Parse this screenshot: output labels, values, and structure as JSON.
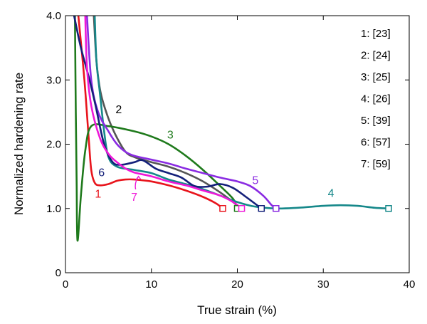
{
  "chart_data": {
    "type": "line",
    "xlabel": "True strain (%)",
    "ylabel": "Normalized hardening rate",
    "xlim": [
      0,
      40
    ],
    "ylim": [
      0,
      4.0
    ],
    "xticks": [
      "0",
      "10",
      "20",
      "30",
      "40"
    ],
    "yticks": [
      "0",
      "1.0",
      "2.0",
      "3.0",
      "4.0"
    ],
    "grid": false,
    "legend_position": "top-right",
    "legend": [
      "1: [23]",
      "2: [24]",
      "3: [25]",
      "4: [26]",
      "5: [39]",
      "6: [57]",
      "7: [59]"
    ],
    "series": [
      {
        "name": "1",
        "color": "#e8141c",
        "points": [
          [
            1.5,
            4.0
          ],
          [
            2.2,
            3.0
          ],
          [
            2.7,
            2.1
          ],
          [
            3.0,
            1.6
          ],
          [
            3.4,
            1.4
          ],
          [
            4.0,
            1.36
          ],
          [
            5.0,
            1.38
          ],
          [
            6.0,
            1.43
          ],
          [
            7.0,
            1.45
          ],
          [
            8.0,
            1.45
          ],
          [
            10.0,
            1.42
          ],
          [
            12.0,
            1.36
          ],
          [
            14.0,
            1.28
          ],
          [
            16.0,
            1.18
          ],
          [
            17.5,
            1.08
          ],
          [
            18.3,
            1.0
          ]
        ],
        "end_marker": [
          18.3,
          1.0
        ]
      },
      {
        "name": "2",
        "color": "#555555",
        "points": [
          [
            3.3,
            4.0
          ],
          [
            3.6,
            3.3
          ],
          [
            4.1,
            2.8
          ],
          [
            5.0,
            2.4
          ],
          [
            6.0,
            2.1
          ],
          [
            7.0,
            1.88
          ],
          [
            8.0,
            1.8
          ],
          [
            10.0,
            1.72
          ],
          [
            12.0,
            1.65
          ],
          [
            14.0,
            1.55
          ],
          [
            16.0,
            1.42
          ],
          [
            18.0,
            1.25
          ],
          [
            19.5,
            1.1
          ],
          [
            20.3,
            1.0
          ]
        ],
        "end_marker": [
          20.3,
          1.0
        ]
      },
      {
        "name": "3",
        "color": "#1f7a1c",
        "points": [
          [
            1.1,
            4.0
          ],
          [
            1.2,
            2.5
          ],
          [
            1.3,
            1.4
          ],
          [
            1.4,
            0.5
          ],
          [
            1.8,
            1.2
          ],
          [
            2.3,
            1.9
          ],
          [
            3.0,
            2.28
          ],
          [
            5.0,
            2.28
          ],
          [
            8.0,
            2.2
          ],
          [
            10.0,
            2.12
          ],
          [
            12.0,
            2.0
          ],
          [
            14.0,
            1.82
          ],
          [
            16.0,
            1.6
          ],
          [
            18.0,
            1.35
          ],
          [
            19.5,
            1.15
          ],
          [
            20.0,
            1.0
          ]
        ],
        "end_marker": [
          20.0,
          1.0
        ]
      },
      {
        "name": "4",
        "color": "#16888a",
        "points": [
          [
            3.4,
            4.0
          ],
          [
            3.6,
            3.3
          ],
          [
            4.0,
            2.8
          ],
          [
            4.5,
            2.2
          ],
          [
            5.0,
            1.8
          ],
          [
            6.0,
            1.65
          ],
          [
            8.0,
            1.6
          ],
          [
            10.0,
            1.55
          ],
          [
            12.0,
            1.45
          ],
          [
            14.0,
            1.38
          ],
          [
            16.0,
            1.3
          ],
          [
            18.0,
            1.2
          ],
          [
            20.0,
            1.1
          ],
          [
            22.0,
            1.03
          ],
          [
            24.5,
            1.0
          ],
          [
            27.0,
            1.01
          ],
          [
            30.0,
            1.04
          ],
          [
            32.0,
            1.05
          ],
          [
            34.0,
            1.04
          ],
          [
            36.0,
            1.01
          ],
          [
            37.6,
            1.0
          ]
        ],
        "end_marker": [
          37.6,
          1.0
        ]
      },
      {
        "name": "5",
        "color": "#8a2be2",
        "points": [
          [
            2.5,
            4.0
          ],
          [
            3.0,
            3.0
          ],
          [
            3.8,
            2.5
          ],
          [
            5.0,
            2.2
          ],
          [
            6.0,
            2.0
          ],
          [
            7.0,
            1.88
          ],
          [
            8.0,
            1.82
          ],
          [
            10.0,
            1.76
          ],
          [
            12.0,
            1.7
          ],
          [
            14.0,
            1.62
          ],
          [
            16.0,
            1.55
          ],
          [
            18.0,
            1.48
          ],
          [
            20.0,
            1.42
          ],
          [
            21.5,
            1.35
          ],
          [
            23.0,
            1.2
          ],
          [
            24.0,
            1.05
          ],
          [
            24.5,
            1.0
          ]
        ],
        "end_marker": [
          24.5,
          1.0
        ]
      },
      {
        "name": "6",
        "color": "#14207a",
        "points": [
          [
            1.0,
            4.0
          ],
          [
            1.8,
            3.5
          ],
          [
            2.8,
            3.0
          ],
          [
            3.5,
            2.6
          ],
          [
            4.5,
            2.0
          ],
          [
            5.5,
            1.72
          ],
          [
            6.5,
            1.68
          ],
          [
            8.0,
            1.72
          ],
          [
            9.0,
            1.75
          ],
          [
            10.5,
            1.62
          ],
          [
            12.0,
            1.55
          ],
          [
            13.5,
            1.48
          ],
          [
            15.0,
            1.35
          ],
          [
            16.5,
            1.34
          ],
          [
            18.0,
            1.38
          ],
          [
            19.5,
            1.32
          ],
          [
            21.0,
            1.18
          ],
          [
            22.0,
            1.08
          ],
          [
            22.8,
            1.0
          ]
        ],
        "end_marker": [
          22.8,
          1.0
        ]
      },
      {
        "name": "7",
        "color": "#ee18d8",
        "points": [
          [
            2.3,
            4.0
          ],
          [
            2.5,
            3.2
          ],
          [
            3.0,
            2.6
          ],
          [
            4.0,
            2.1
          ],
          [
            5.0,
            1.85
          ],
          [
            6.0,
            1.72
          ],
          [
            7.0,
            1.62
          ],
          [
            8.0,
            1.56
          ],
          [
            10.0,
            1.5
          ],
          [
            12.0,
            1.42
          ],
          [
            14.0,
            1.36
          ],
          [
            16.0,
            1.28
          ],
          [
            18.0,
            1.2
          ],
          [
            19.5,
            1.1
          ],
          [
            20.5,
            1.0
          ]
        ],
        "end_marker": [
          20.5,
          1.0
        ]
      }
    ],
    "annotations": [
      {
        "text": "1",
        "x": 3.8,
        "y": 1.17,
        "color": "#e8141c"
      },
      {
        "text": "2",
        "x": 6.2,
        "y": 2.48,
        "color": "#000000"
      },
      {
        "text": "3",
        "x": 12.2,
        "y": 2.09,
        "color": "#1f7a1c"
      },
      {
        "text": "4",
        "x": 30.9,
        "y": 1.18,
        "color": "#16888a"
      },
      {
        "text": "5",
        "x": 22.1,
        "y": 1.38,
        "color": "#8a2be2"
      },
      {
        "text": "6",
        "x": 4.2,
        "y": 1.5,
        "color": "#14207a"
      },
      {
        "text": "7",
        "x": 8.0,
        "y": 1.12,
        "color": "#ee18d8"
      }
    ]
  }
}
